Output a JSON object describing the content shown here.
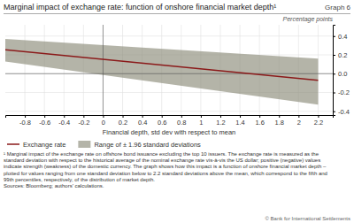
{
  "chart_data": {
    "type": "line",
    "title": "Marginal impact of exchange rate: function of onshore financial market depth¹",
    "annotations": [
      "Graph 6",
      "© Bank for International Settlements"
    ],
    "x_label": "Financial depth, std dev with respect to mean",
    "y_label": "Percentage points",
    "x": [
      -1.0,
      2.2
    ],
    "series": [
      {
        "name": "Exchange rate",
        "type": "line",
        "color": "#8b1a1a",
        "values": [
          0.255,
          -0.07
        ]
      },
      {
        "name": "Range of ± 1.96 standard deviations",
        "type": "band",
        "color": "#8c8c7a",
        "lower": [
          0.13,
          -0.33
        ],
        "upper": [
          0.37,
          0.16
        ]
      }
    ],
    "xlim": [
      -1.0,
      2.35
    ],
    "ylim": [
      -0.44,
      0.52
    ],
    "xticks": [
      -0.8,
      -0.6,
      -0.4,
      -0.2,
      0,
      0.2,
      0.4,
      0.6,
      0.8,
      1,
      1.2,
      1.4,
      1.6,
      1.8,
      2,
      2.2
    ],
    "yticks": [
      -0.4,
      -0.2,
      {
        "value": 0,
        "label": "0.0"
      },
      0.2,
      0.4
    ],
    "grid": true,
    "legend": "bottom",
    "footnotes": [
      "¹ Marginal impact of the exchange rate on offshore bond issuance excluding the top 10 issuers. The exchange rate is measured as the",
      "standard deviation with respect to the historical average of the nominal exchange rate vis-à-vis the US dollar; positive (negative) values",
      "indicate strength (weakness) of the domestic currency. The graph shows how this impact is a function of onshore financial market depth –",
      "plotted for values ranging from one standard deviation below to 2.2 standard deviations above the mean, which correspond to the fifth and",
      "99th percentiles, respectively, of the distribution of market depth.",
      "Sources: Bloomberg; authors’ calculations."
    ]
  }
}
